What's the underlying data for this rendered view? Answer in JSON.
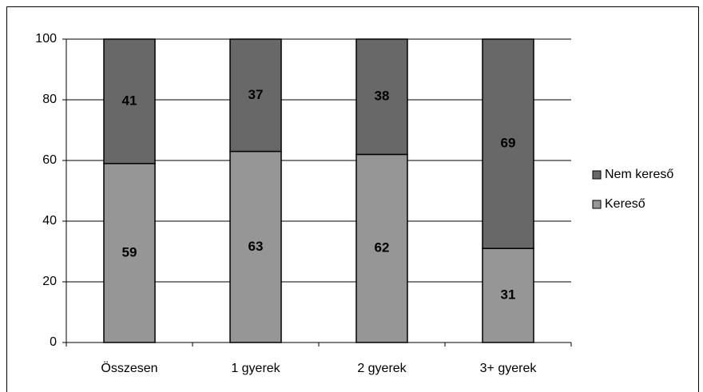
{
  "chart_data": {
    "type": "bar",
    "stacked": true,
    "categories": [
      "Összesen",
      "1 gyerek",
      "2 gyerek",
      "3+ gyerek"
    ],
    "series": [
      {
        "name": "Kereső",
        "color": "#969696",
        "values": [
          59,
          63,
          62,
          31
        ]
      },
      {
        "name": "Nem kereső",
        "color": "#686868",
        "values": [
          41,
          37,
          38,
          69
        ]
      }
    ],
    "ylim": [
      0,
      100
    ],
    "yticks": [
      0,
      20,
      40,
      60,
      80,
      100
    ],
    "grid": true,
    "legend": "right"
  }
}
